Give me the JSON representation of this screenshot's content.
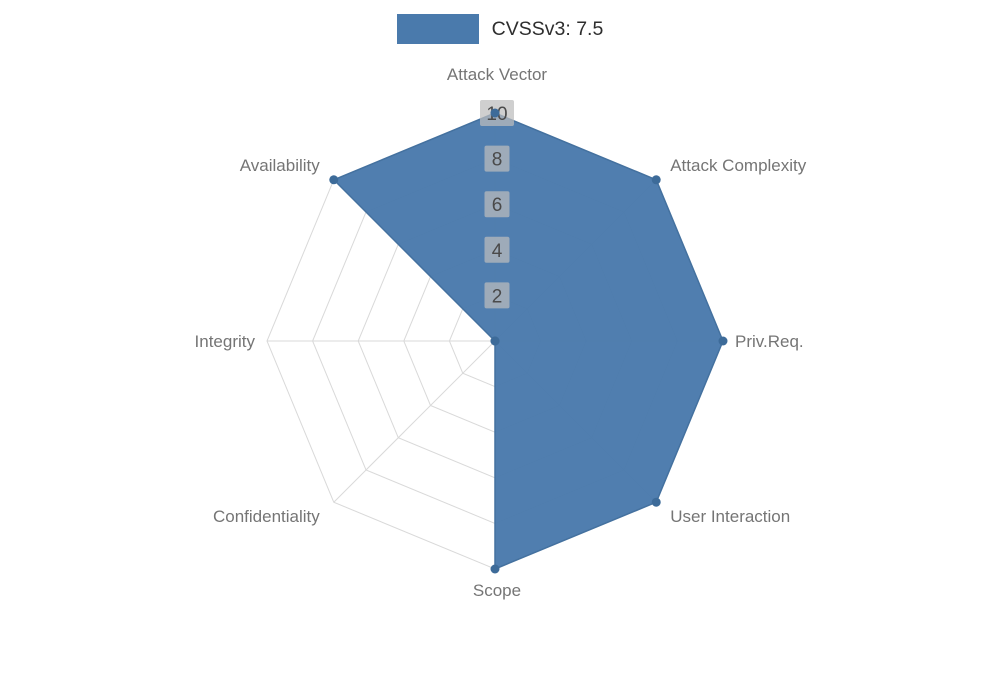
{
  "legend": {
    "label": "CVSSv3: 7.5"
  },
  "chart_data": {
    "type": "radar",
    "title": "CVSSv3: 7.5",
    "categories": [
      "Attack Vector",
      "Attack Complexity",
      "Priv.Req.",
      "User Interaction",
      "Scope",
      "Confidentiality",
      "Integrity",
      "Availability"
    ],
    "series": [
      {
        "name": "CVSSv3: 7.5",
        "values": [
          10,
          10,
          10,
          10,
          10,
          0,
          0,
          10
        ]
      }
    ],
    "radial_ticks": [
      2,
      4,
      6,
      8,
      10
    ],
    "range": [
      0,
      10
    ],
    "grid": true,
    "legend_position": "top-center",
    "colors": {
      "series_fill": "#4a7aac",
      "series_stroke": "#44719f",
      "marker": "#3d6b99",
      "grid_line": "#d9d9d9",
      "axis_label": "#757575",
      "tick_text": "#4a4a4a",
      "tick_chip_bg": "#bdbdbd",
      "legend_text": "#2e2e2e",
      "background": "#ffffff"
    }
  }
}
